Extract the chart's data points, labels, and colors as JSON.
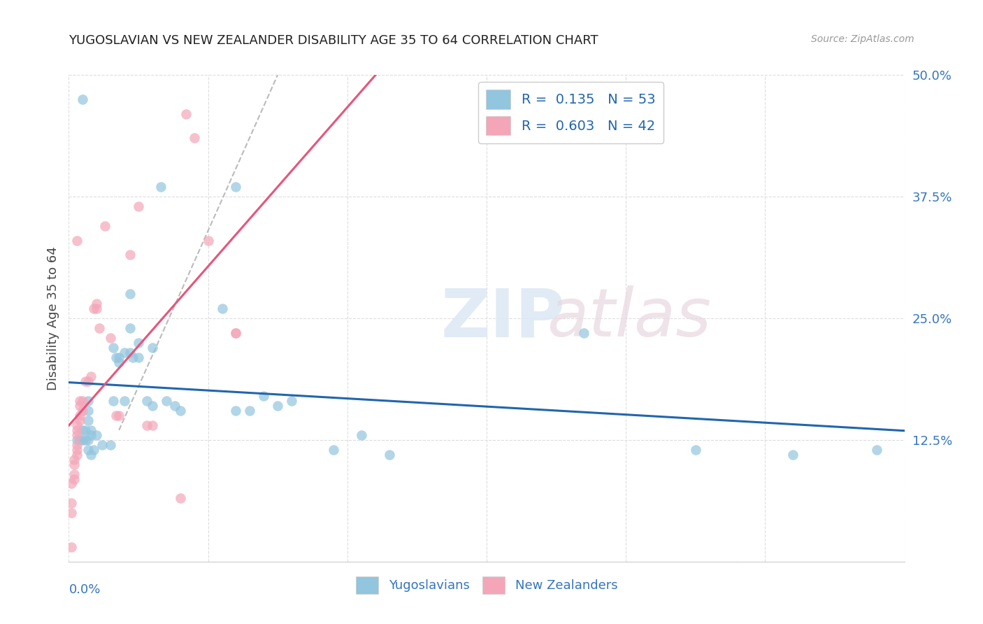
{
  "title": "YUGOSLAVIAN VS NEW ZEALANDER DISABILITY AGE 35 TO 64 CORRELATION CHART",
  "source": "Source: ZipAtlas.com",
  "ylabel": "Disability Age 35 to 64",
  "y_ticks": [
    0.0,
    0.125,
    0.25,
    0.375,
    0.5
  ],
  "y_tick_labels": [
    "",
    "12.5%",
    "25.0%",
    "37.5%",
    "50.0%"
  ],
  "xlim": [
    0.0,
    0.3
  ],
  "ylim": [
    0.0,
    0.5
  ],
  "blue_color": "#92c5de",
  "pink_color": "#f4a6b8",
  "blue_line_color": "#2166ac",
  "pink_line_color": "#e8547a",
  "blue_scatter": [
    [
      0.005,
      0.475
    ],
    [
      0.033,
      0.385
    ],
    [
      0.022,
      0.275
    ],
    [
      0.007,
      0.165
    ],
    [
      0.007,
      0.155
    ],
    [
      0.007,
      0.145
    ],
    [
      0.008,
      0.135
    ],
    [
      0.006,
      0.135
    ],
    [
      0.005,
      0.135
    ],
    [
      0.008,
      0.13
    ],
    [
      0.01,
      0.13
    ],
    [
      0.007,
      0.125
    ],
    [
      0.006,
      0.125
    ],
    [
      0.005,
      0.125
    ],
    [
      0.004,
      0.125
    ],
    [
      0.003,
      0.125
    ],
    [
      0.012,
      0.12
    ],
    [
      0.015,
      0.12
    ],
    [
      0.009,
      0.115
    ],
    [
      0.007,
      0.115
    ],
    [
      0.008,
      0.11
    ],
    [
      0.016,
      0.22
    ],
    [
      0.017,
      0.21
    ],
    [
      0.02,
      0.215
    ],
    [
      0.018,
      0.21
    ],
    [
      0.022,
      0.215
    ],
    [
      0.023,
      0.21
    ],
    [
      0.018,
      0.205
    ],
    [
      0.025,
      0.225
    ],
    [
      0.025,
      0.21
    ],
    [
      0.022,
      0.24
    ],
    [
      0.02,
      0.165
    ],
    [
      0.016,
      0.165
    ],
    [
      0.03,
      0.22
    ],
    [
      0.028,
      0.165
    ],
    [
      0.03,
      0.16
    ],
    [
      0.035,
      0.165
    ],
    [
      0.038,
      0.16
    ],
    [
      0.04,
      0.155
    ],
    [
      0.055,
      0.26
    ],
    [
      0.06,
      0.385
    ],
    [
      0.06,
      0.155
    ],
    [
      0.065,
      0.155
    ],
    [
      0.07,
      0.17
    ],
    [
      0.075,
      0.16
    ],
    [
      0.08,
      0.165
    ],
    [
      0.095,
      0.115
    ],
    [
      0.105,
      0.13
    ],
    [
      0.115,
      0.11
    ],
    [
      0.185,
      0.235
    ],
    [
      0.225,
      0.115
    ],
    [
      0.26,
      0.11
    ],
    [
      0.29,
      0.115
    ]
  ],
  "pink_scatter": [
    [
      0.003,
      0.33
    ],
    [
      0.004,
      0.165
    ],
    [
      0.005,
      0.165
    ],
    [
      0.004,
      0.16
    ],
    [
      0.005,
      0.155
    ],
    [
      0.004,
      0.15
    ],
    [
      0.004,
      0.145
    ],
    [
      0.003,
      0.14
    ],
    [
      0.003,
      0.135
    ],
    [
      0.003,
      0.13
    ],
    [
      0.003,
      0.12
    ],
    [
      0.003,
      0.115
    ],
    [
      0.003,
      0.11
    ],
    [
      0.002,
      0.105
    ],
    [
      0.002,
      0.1
    ],
    [
      0.002,
      0.09
    ],
    [
      0.002,
      0.085
    ],
    [
      0.001,
      0.08
    ],
    [
      0.001,
      0.06
    ],
    [
      0.001,
      0.05
    ],
    [
      0.001,
      0.015
    ],
    [
      0.006,
      0.185
    ],
    [
      0.007,
      0.185
    ],
    [
      0.008,
      0.19
    ],
    [
      0.009,
      0.26
    ],
    [
      0.01,
      0.265
    ],
    [
      0.01,
      0.26
    ],
    [
      0.011,
      0.24
    ],
    [
      0.013,
      0.345
    ],
    [
      0.015,
      0.23
    ],
    [
      0.017,
      0.15
    ],
    [
      0.018,
      0.15
    ],
    [
      0.022,
      0.315
    ],
    [
      0.025,
      0.365
    ],
    [
      0.028,
      0.14
    ],
    [
      0.03,
      0.14
    ],
    [
      0.04,
      0.065
    ],
    [
      0.042,
      0.46
    ],
    [
      0.045,
      0.435
    ],
    [
      0.05,
      0.33
    ],
    [
      0.06,
      0.235
    ],
    [
      0.06,
      0.235
    ]
  ],
  "dash_line": [
    [
      0.018,
      0.135
    ],
    [
      0.075,
      0.5
    ]
  ],
  "legend1_label": "R =  0.135   N = 53",
  "legend2_label": "R =  0.603   N = 42",
  "bottom_legend1": "Yugoslavians",
  "bottom_legend2": "New Zealanders"
}
